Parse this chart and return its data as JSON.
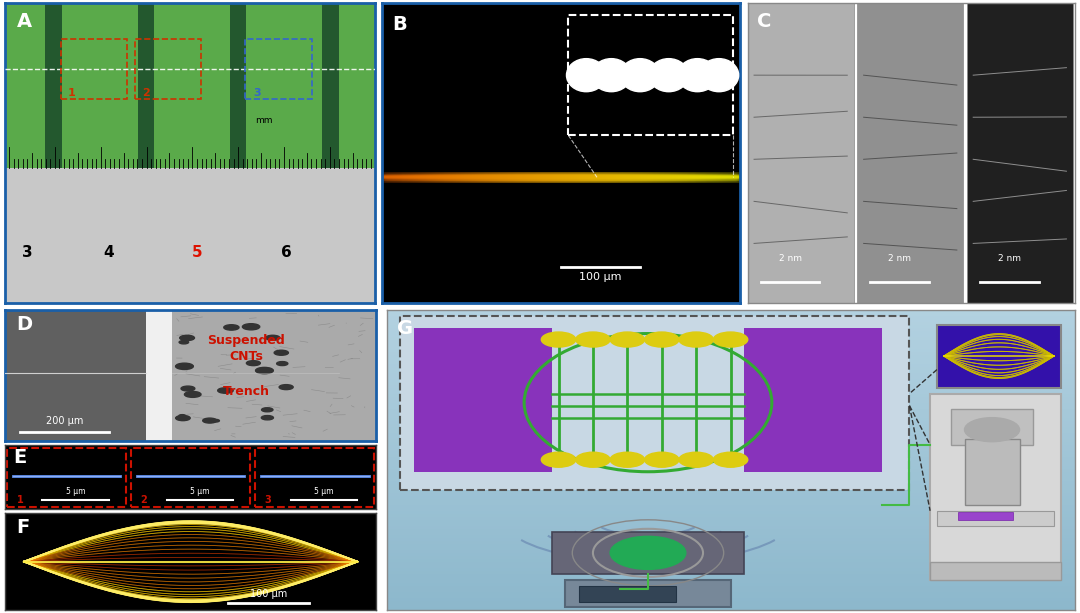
{
  "figure_width": 10.8,
  "figure_height": 6.13,
  "background_color": "#ffffff",
  "border_color_blue": "#1a5fa8",
  "border_color_red": "#cc2200",
  "panel_labels": [
    "A",
    "B",
    "C",
    "D",
    "E",
    "F",
    "G"
  ],
  "panel_label_color": "#ffffff",
  "panel_label_fontsize": 14
}
